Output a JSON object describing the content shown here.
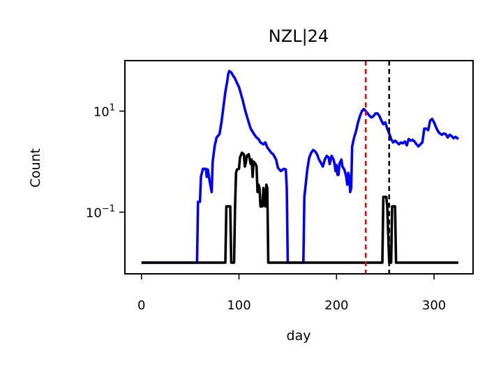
{
  "chart_data": {
    "type": "line",
    "title": "NZL|24",
    "xlabel": "day",
    "ylabel": "Count",
    "yscale": "log",
    "xlim": [
      -17,
      340
    ],
    "ylim": [
      0.006,
      100
    ],
    "xticks": [
      0,
      100,
      200,
      300
    ],
    "xtick_labels": [
      "0",
      "100",
      "200",
      "300"
    ],
    "yticks": [
      {
        "value": 0.1,
        "base": "10",
        "exp": "−1"
      },
      {
        "value": 10,
        "base": "10",
        "exp": "1"
      }
    ],
    "vlines": [
      {
        "x": 230,
        "color": "#ff0000",
        "style": "dashed"
      },
      {
        "x": 254,
        "color": "#000000",
        "style": "dashed"
      }
    ],
    "series": [
      {
        "color": "#0000ff",
        "points": [
          [
            0,
            0.01
          ],
          [
            57,
            0.01
          ],
          [
            58,
            0.16
          ],
          [
            60,
            0.16
          ],
          [
            61,
            0.5
          ],
          [
            62,
            0.6
          ],
          [
            63,
            0.72
          ],
          [
            66,
            0.72
          ],
          [
            67,
            0.5
          ],
          [
            68,
            0.7
          ],
          [
            70,
            0.4
          ],
          [
            72,
            0.25
          ],
          [
            73,
            1
          ],
          [
            75,
            2
          ],
          [
            77,
            3
          ],
          [
            80,
            3.5
          ],
          [
            82,
            6
          ],
          [
            84,
            12
          ],
          [
            86,
            24
          ],
          [
            88,
            40
          ],
          [
            89,
            55
          ],
          [
            90,
            62
          ],
          [
            92,
            58
          ],
          [
            94,
            50
          ],
          [
            96,
            44
          ],
          [
            98,
            36
          ],
          [
            100,
            30
          ],
          [
            102,
            22
          ],
          [
            104,
            16
          ],
          [
            106,
            11
          ],
          [
            108,
            8
          ],
          [
            110,
            6
          ],
          [
            112,
            4.5
          ],
          [
            115,
            3.6
          ],
          [
            118,
            3
          ],
          [
            120,
            2.8
          ],
          [
            122,
            2.4
          ],
          [
            125,
            2.2
          ],
          [
            127,
            2.4
          ],
          [
            129,
            1.9
          ],
          [
            131,
            1.7
          ],
          [
            133,
            1.5
          ],
          [
            135,
            1.4
          ],
          [
            138,
            1.1
          ],
          [
            140,
            0.75
          ],
          [
            143,
            0.65
          ],
          [
            146,
            0.72
          ],
          [
            148,
            0.7
          ],
          [
            149,
            0.3
          ],
          [
            150,
            0.01
          ],
          [
            166,
            0.01
          ],
          [
            167,
            0.2
          ],
          [
            168,
            0.3
          ],
          [
            170,
            0.7
          ],
          [
            172,
            1.2
          ],
          [
            174,
            1.5
          ],
          [
            176,
            1.7
          ],
          [
            178,
            1.6
          ],
          [
            180,
            1.4
          ],
          [
            182,
            1.1
          ],
          [
            184,
            0.95
          ],
          [
            186,
            0.8
          ],
          [
            188,
            1.1
          ],
          [
            190,
            1.3
          ],
          [
            192,
            1.2
          ],
          [
            193,
            0.9
          ],
          [
            195,
            1.3
          ],
          [
            197,
            1.1
          ],
          [
            198,
            0.9
          ],
          [
            199,
            0.65
          ],
          [
            200,
            0.85
          ],
          [
            201,
            0.55
          ],
          [
            202,
            0.55
          ],
          [
            203,
            0.9
          ],
          [
            205,
            1.1
          ],
          [
            206,
            0.8
          ],
          [
            208,
            0.7
          ],
          [
            210,
            0.5
          ],
          [
            211,
            0.35
          ],
          [
            212,
            0.6
          ],
          [
            213,
            0.5
          ],
          [
            214,
            0.25
          ],
          [
            215,
            0.3
          ],
          [
            216,
            2
          ],
          [
            218,
            3
          ],
          [
            220,
            4
          ],
          [
            222,
            6
          ],
          [
            224,
            8
          ],
          [
            226,
            10
          ],
          [
            228,
            11
          ],
          [
            230,
            10
          ],
          [
            232,
            9
          ],
          [
            234,
            8
          ],
          [
            236,
            7.5
          ],
          [
            238,
            8
          ],
          [
            240,
            9
          ],
          [
            242,
            9
          ],
          [
            244,
            8
          ],
          [
            246,
            6.5
          ],
          [
            248,
            5.5
          ],
          [
            250,
            6
          ],
          [
            252,
            4.5
          ],
          [
            254,
            3.6
          ],
          [
            256,
            2.8
          ],
          [
            258,
            2.4
          ],
          [
            260,
            2.6
          ],
          [
            262,
            2.4
          ],
          [
            264,
            2.2
          ],
          [
            266,
            2.4
          ],
          [
            268,
            2.3
          ],
          [
            270,
            2.5
          ],
          [
            272,
            2.1
          ],
          [
            274,
            2.8
          ],
          [
            276,
            2.6
          ],
          [
            278,
            2.7
          ],
          [
            280,
            2.5
          ],
          [
            282,
            2.2
          ],
          [
            284,
            2.0
          ],
          [
            286,
            2.2
          ],
          [
            288,
            2.4
          ],
          [
            290,
            4.5
          ],
          [
            292,
            4.5
          ],
          [
            294,
            4.2
          ],
          [
            296,
            6.5
          ],
          [
            298,
            7
          ],
          [
            300,
            6
          ],
          [
            302,
            4.8
          ],
          [
            304,
            4
          ],
          [
            306,
            3.6
          ],
          [
            308,
            3.4
          ],
          [
            310,
            3.6
          ],
          [
            312,
            3.5
          ],
          [
            314,
            3.0
          ],
          [
            316,
            3.4
          ],
          [
            318,
            3.2
          ],
          [
            320,
            2.9
          ],
          [
            322,
            3.1
          ],
          [
            325,
            2.8
          ]
        ]
      },
      {
        "color": "#000000",
        "points": [
          [
            0,
            0.01
          ],
          [
            86,
            0.01
          ],
          [
            87,
            0.13
          ],
          [
            91,
            0.13
          ],
          [
            92,
            0.01
          ],
          [
            95,
            0.01
          ],
          [
            96,
            0.13
          ],
          [
            97,
            0.6
          ],
          [
            98,
            0.7
          ],
          [
            100,
            0.72
          ],
          [
            101,
            1.2
          ],
          [
            103,
            1.5
          ],
          [
            105,
            1.4
          ],
          [
            106,
            0.8
          ],
          [
            107,
            0.95
          ],
          [
            108,
            1.3
          ],
          [
            110,
            1.4
          ],
          [
            112,
            0.9
          ],
          [
            113,
            1.1
          ],
          [
            114,
            0.5
          ],
          [
            115,
            1.0
          ],
          [
            117,
            0.9
          ],
          [
            118,
            0.8
          ],
          [
            119,
            0.25
          ],
          [
            120,
            0.35
          ],
          [
            121,
            0.3
          ],
          [
            122,
            0.13
          ],
          [
            124,
            0.13
          ],
          [
            125,
            0.3
          ],
          [
            126,
            0.14
          ],
          [
            127,
            0.13
          ],
          [
            128,
            0.35
          ],
          [
            129,
            0.3
          ],
          [
            130,
            0.01
          ],
          [
            247,
            0.01
          ],
          [
            248,
            0.2
          ],
          [
            251,
            0.2
          ],
          [
            252,
            0.13
          ],
          [
            254,
            0.01
          ],
          [
            256,
            0.01
          ],
          [
            257,
            0.13
          ],
          [
            260,
            0.13
          ],
          [
            261,
            0.01
          ],
          [
            325,
            0.01
          ]
        ]
      }
    ]
  }
}
